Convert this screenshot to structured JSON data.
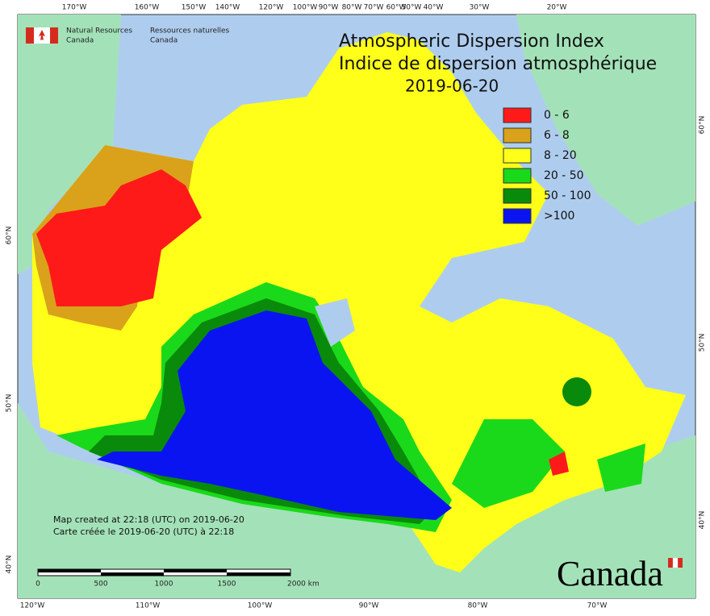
{
  "logo": {
    "en": [
      "Natural Resources",
      "Canada"
    ],
    "fr": [
      "Ressources naturelles",
      "Canada"
    ]
  },
  "title": [
    "Atmospheric Dispersion Index",
    "Indice de dispersion atmosphérique",
    "2019-06-20"
  ],
  "legend": [
    {
      "label": "0 - 6",
      "color": "#ff1a1a"
    },
    {
      "label": "6 - 8",
      "color": "#d9a21a"
    },
    {
      "label": "8 - 20",
      "color": "#ffff1a"
    },
    {
      "label": "20 - 50",
      "color": "#1ad91a"
    },
    {
      "label": "50 - 100",
      "color": "#0a8a0a"
    },
    {
      "label": ">100",
      "color": "#0a14f0"
    }
  ],
  "top_longitudes": [
    "170°W",
    "160°W",
    "150°W",
    "140°W",
    "120°W",
    "100°W",
    "90°W",
    "80°W",
    "70°W",
    "60°W",
    "50°W",
    "40°W",
    "30°W",
    "20°W"
  ],
  "bottom_longitudes": [
    "120°W",
    "110°W",
    "100°W",
    "90°W",
    "80°W",
    "70°W"
  ],
  "left_latitudes": [
    "60°N",
    "50°N",
    "40°N"
  ],
  "right_latitudes": [
    "60°N",
    "50°N",
    "40°N"
  ],
  "footer": [
    "Map created at 22:18 (UTC) on 2019-06-20",
    "Carte créée le 2019-06-20 (UTC) à 22:18"
  ],
  "scale_bar": [
    "0",
    "500",
    "1000",
    "1500",
    "2000 km"
  ],
  "wordmark": "Canada"
}
